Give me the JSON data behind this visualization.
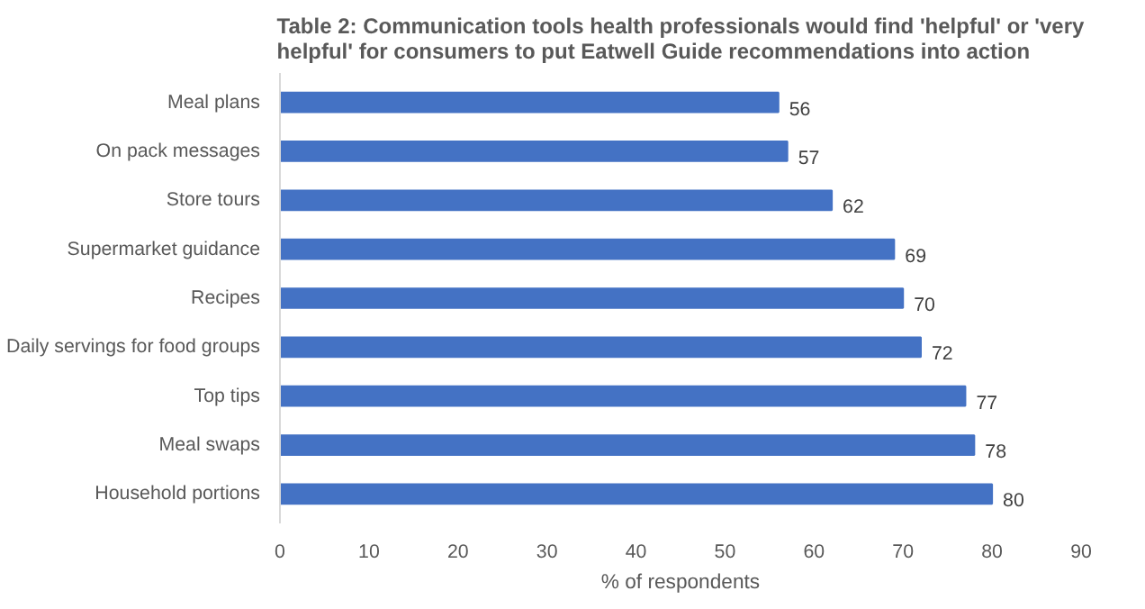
{
  "chart_data": {
    "type": "bar",
    "orientation": "horizontal",
    "title": "Table 2: Communication tools health professionals would find 'helpful' or 'very helpful' for consumers to put Eatwell Guide recommendations into action",
    "categories": [
      "Meal plans",
      "On pack messages",
      "Store tours",
      "Supermarket guidance",
      "Recipes",
      "Daily servings for food groups",
      "Top tips",
      "Meal swaps",
      "Household portions"
    ],
    "values": [
      56,
      57,
      62,
      69,
      70,
      72,
      77,
      78,
      80
    ],
    "color": "#4472c4",
    "xlim": [
      0,
      90
    ],
    "xticks": [
      0,
      10,
      20,
      30,
      40,
      50,
      60,
      70,
      80,
      90
    ],
    "xlabel": "% of respondents",
    "data_labels": true,
    "grid": false
  }
}
